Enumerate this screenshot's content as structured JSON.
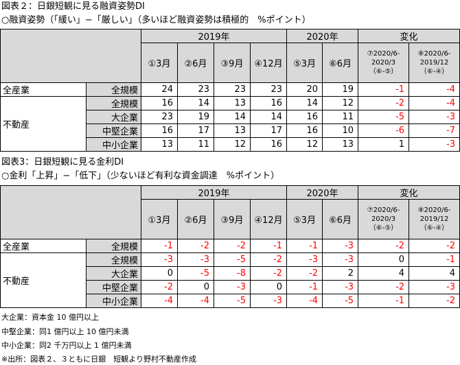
{
  "figure1": {
    "title": "図表２：日銀短観に見る融資姿勢DI",
    "subtitle": "○融資姿勢（「緩い」−「厳しい」（多いほど融資姿勢は積極的　%ポイント）",
    "year_groups": [
      "2019年",
      "2020年",
      "変化"
    ],
    "columns": [
      [
        "①3月"
      ],
      [
        "②6月"
      ],
      [
        "③9月"
      ],
      [
        "④12月"
      ],
      [
        "⑤3月"
      ],
      [
        "⑥6月"
      ],
      [
        "⑦2020/6-",
        "2020/3",
        "（⑥-⑤）"
      ],
      [
        "⑧2020/6-",
        "2019/12",
        "（⑥-④）"
      ]
    ],
    "groups": [
      {
        "industry": "全産業",
        "rows": [
          {
            "size": "全規模",
            "values": [
              24,
              23,
              23,
              23,
              20,
              19,
              -1,
              -4
            ]
          }
        ]
      },
      {
        "industry": "不動産",
        "rows": [
          {
            "size": "全規模",
            "values": [
              16,
              14,
              13,
              16,
              14,
              12,
              -2,
              -4
            ]
          },
          {
            "size": "大企業",
            "values": [
              23,
              19,
              14,
              14,
              16,
              11,
              -5,
              -3
            ]
          },
          {
            "size": "中堅企業",
            "values": [
              16,
              17,
              13,
              17,
              16,
              10,
              -6,
              -7
            ]
          },
          {
            "size": "中小企業",
            "values": [
              13,
              11,
              12,
              16,
              12,
              13,
              1,
              -3
            ]
          }
        ]
      }
    ]
  },
  "figure2": {
    "title": "図表3：日銀短観に見る金利DI",
    "subtitle": "○金利「上昇」−「低下」（少ないほど有利な資金調達　%ポイント）",
    "year_groups": [
      "2019年",
      "2020年",
      "変化"
    ],
    "columns": [
      [
        "①3月"
      ],
      [
        "②6月"
      ],
      [
        "③9月"
      ],
      [
        "④12月"
      ],
      [
        "⑤3月"
      ],
      [
        "⑥6月"
      ],
      [
        "⑦2020/6-",
        "2020/3",
        "（⑥-⑤）"
      ],
      [
        "⑧2020/6-",
        "2019/12",
        "（⑥-④）"
      ]
    ],
    "groups": [
      {
        "industry": "全産業",
        "rows": [
          {
            "size": "全規模",
            "values": [
              -1,
              -2,
              -2,
              -1,
              -1,
              -3,
              -2,
              -2
            ]
          }
        ]
      },
      {
        "industry": "不動産",
        "rows": [
          {
            "size": "全規模",
            "values": [
              -3,
              -3,
              -5,
              -2,
              -3,
              -3,
              0,
              -1
            ]
          },
          {
            "size": "大企業",
            "values": [
              0,
              -5,
              -8,
              -2,
              -2,
              2,
              4,
              4
            ]
          },
          {
            "size": "中堅企業",
            "values": [
              -2,
              0,
              -3,
              0,
              -1,
              -3,
              -2,
              -3
            ]
          },
          {
            "size": "中小企業",
            "values": [
              -4,
              -4,
              -5,
              -3,
              -4,
              -5,
              -1,
              -2
            ]
          }
        ]
      }
    ]
  },
  "notes": [
    "大企業：資本金 10 億円以上",
    "中堅企業：同1 億円以上 10 億円未満",
    "中小企業：同2 千万円以上 1 億円未満",
    "※出所：図表２、３ともに日銀　短観より野村不動産作成"
  ]
}
